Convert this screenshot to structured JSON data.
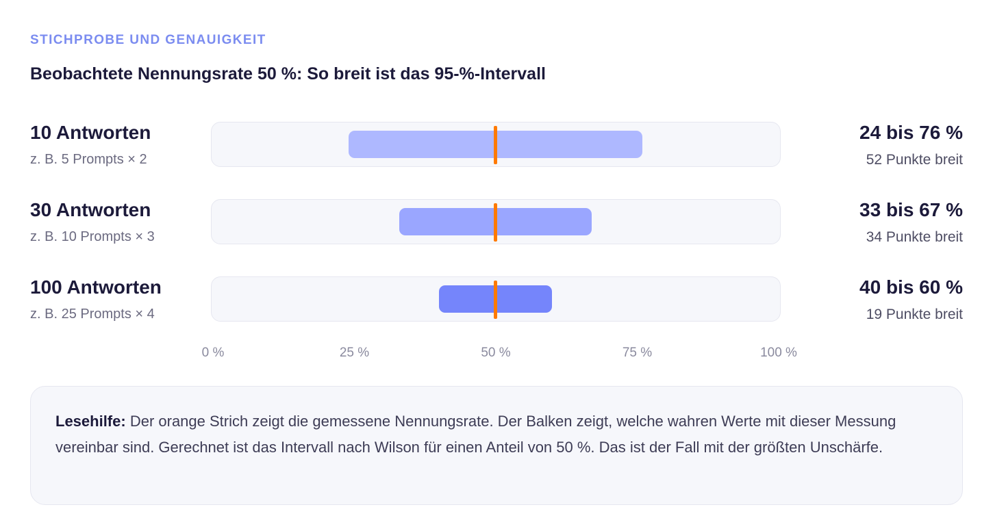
{
  "header": {
    "eyebrow": "STICHPROBE UND GENAUIGKEIT",
    "title": "Beobachtete Nennungsrate 50 %: So breit ist das 95-%-Intervall"
  },
  "chart_data": {
    "type": "bar",
    "title": "Beobachtete Nennungsrate 50 %: So breit ist das 95-%-Intervall",
    "xlim": [
      0,
      100
    ],
    "point_estimate": 50,
    "x_ticks": [
      "0 %",
      "25 %",
      "50 %",
      "75 %",
      "100 %"
    ],
    "tick_values": [
      0,
      25,
      50,
      75,
      100
    ],
    "rows": [
      {
        "label": "10 Antworten",
        "sublabel": "z. B. 5 Prompts × 2",
        "low": 24,
        "high": 76,
        "range_text": "24 bis 76 %",
        "width_text": "52 Punkte breit",
        "color": "#aeb8ff"
      },
      {
        "label": "30 Antworten",
        "sublabel": "z. B. 10 Prompts × 3",
        "low": 33,
        "high": 67,
        "range_text": "33 bis 67 %",
        "width_text": "34 Punkte breit",
        "color": "#9aa6ff"
      },
      {
        "label": "100 Antworten",
        "sublabel": "z. B. 25 Prompts × 4",
        "low": 40,
        "high": 60,
        "range_text": "40 bis 60 %",
        "width_text": "19 Punkte breit",
        "color": "#7585fb"
      }
    ],
    "marker_color": "#ff7a00"
  },
  "note": {
    "lead": "Lesehilfe:",
    "text": " Der orange Strich zeigt die gemessene Nennungsrate. Der Balken zeigt, welche wahren Werte mit dieser Messung vereinbar sind. Gerechnet ist das Intervall nach Wilson für einen Anteil von 50 %. Das ist der Fall mit der größten Unschärfe."
  }
}
